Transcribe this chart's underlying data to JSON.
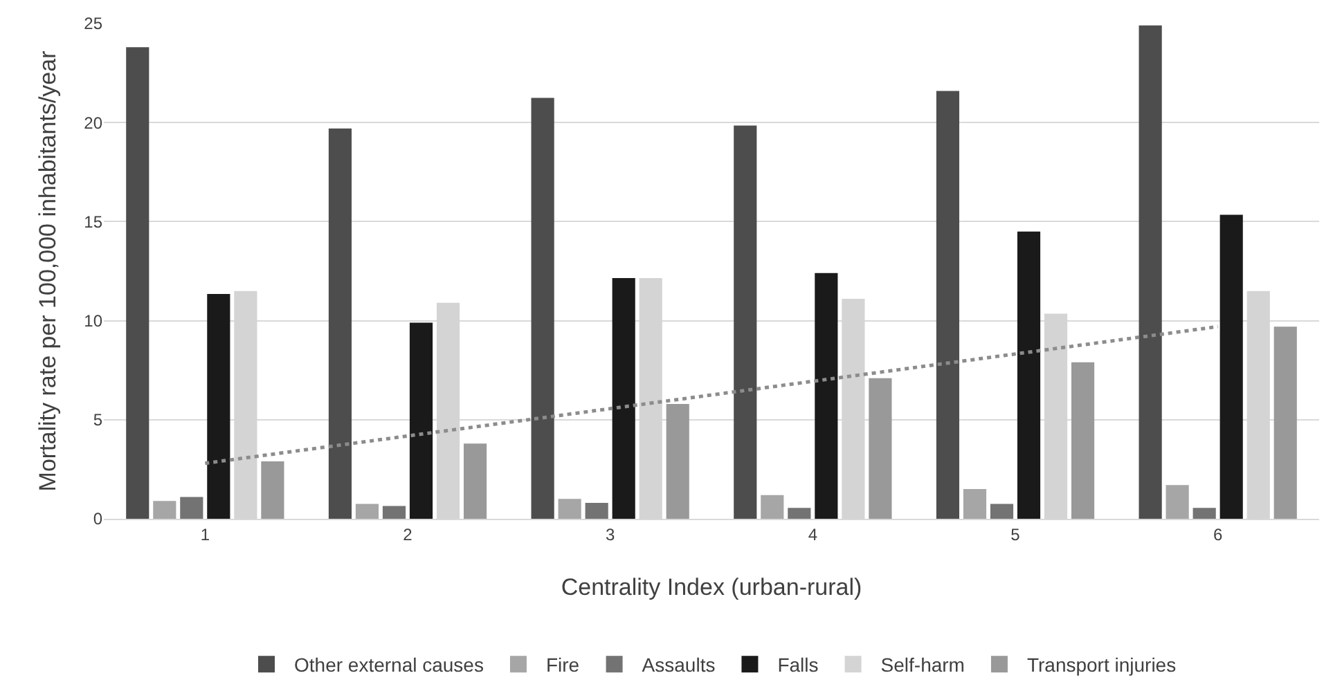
{
  "chart_data": {
    "type": "bar",
    "xlabel": "Centrality Index (urban-rural)",
    "ylabel": "Mortality rate per 100,000 inhabitants/year",
    "categories": [
      "1",
      "2",
      "3",
      "4",
      "5",
      "6"
    ],
    "series": [
      {
        "name": "Other external causes",
        "color": "#4d4d4d",
        "values": [
          23.8,
          19.7,
          21.25,
          19.85,
          21.6,
          24.9
        ]
      },
      {
        "name": "Fire",
        "color": "#a6a6a6",
        "values": [
          0.9,
          0.75,
          1.0,
          1.2,
          1.5,
          1.7
        ]
      },
      {
        "name": "Assaults",
        "color": "#737373",
        "values": [
          1.1,
          0.65,
          0.8,
          0.55,
          0.75,
          0.55
        ]
      },
      {
        "name": "Falls",
        "color": "#1a1a1a",
        "values": [
          11.35,
          9.9,
          12.15,
          12.4,
          14.5,
          15.35
        ]
      },
      {
        "name": "Self-harm",
        "color": "#d4d4d4",
        "values": [
          11.5,
          10.9,
          12.15,
          11.1,
          10.35,
          11.5
        ]
      },
      {
        "name": "Transport injuries",
        "color": "#999999",
        "values": [
          2.9,
          3.8,
          5.8,
          7.1,
          7.9,
          9.7
        ]
      },
      {
        "type": "line",
        "color": "#8c8c8c",
        "line_style": "dotted",
        "marker": "none",
        "x": [
          "1",
          "6"
        ],
        "values": [
          2.8,
          9.7
        ]
      }
    ],
    "ylim": [
      0,
      25
    ],
    "yticks": [
      0,
      5,
      10,
      15,
      20,
      25
    ],
    "grid": "y",
    "legend": "bottom"
  }
}
